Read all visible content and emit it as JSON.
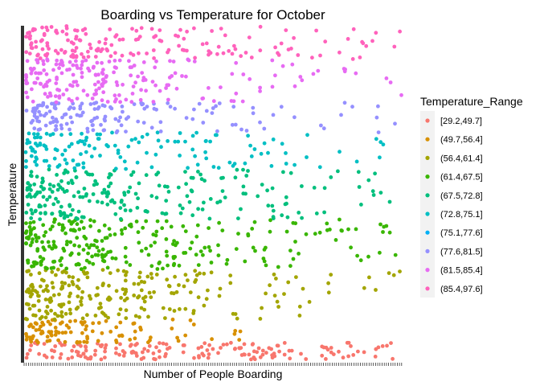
{
  "chart_data": {
    "type": "scatter",
    "title": "Boarding vs Temperature for October",
    "xlabel": "Number of People Boarding",
    "ylabel": "Temperature",
    "x_tick_labels_visible": false,
    "y_tick_labels_visible": false,
    "grid": false,
    "legend_position": "right",
    "legend_title": "Temperature_Range",
    "series": [
      {
        "name": "[29.2,49.7]",
        "color": "#F8766D",
        "band": [
          0.0,
          0.05
        ],
        "n": 170,
        "decay": 0.55
      },
      {
        "name": "(49.7,56.4]",
        "color": "#D89000",
        "band": [
          0.05,
          0.12
        ],
        "n": 100,
        "decay": 0.18
      },
      {
        "name": "(56.4,61.4]",
        "color": "#A3A500",
        "band": [
          0.12,
          0.27
        ],
        "n": 230,
        "decay": 0.3
      },
      {
        "name": "(61.4,67.5]",
        "color": "#39B600",
        "band": [
          0.27,
          0.42
        ],
        "n": 260,
        "decay": 0.36
      },
      {
        "name": "(67.5,72.8]",
        "color": "#00BF7D",
        "band": [
          0.42,
          0.57
        ],
        "n": 230,
        "decay": 0.34
      },
      {
        "name": "(72.8,75.1]",
        "color": "#00BFC4",
        "band": [
          0.57,
          0.68
        ],
        "n": 140,
        "decay": 0.32
      },
      {
        "name": "(75.1,77.6]",
        "color": "#00B0F6",
        "band": [
          0.68,
          0.68
        ],
        "n": 0,
        "decay": 0.3
      },
      {
        "name": "(77.6,81.5]",
        "color": "#9590FF",
        "band": [
          0.68,
          0.77
        ],
        "n": 150,
        "decay": 0.26
      },
      {
        "name": "(81.5,85.4]",
        "color": "#E76BF3",
        "band": [
          0.77,
          0.9
        ],
        "n": 200,
        "decay": 0.28
      },
      {
        "name": "(85.4,97.6]",
        "color": "#FF62BC",
        "band": [
          0.9,
          1.0
        ],
        "n": 170,
        "decay": 0.32
      }
    ]
  }
}
